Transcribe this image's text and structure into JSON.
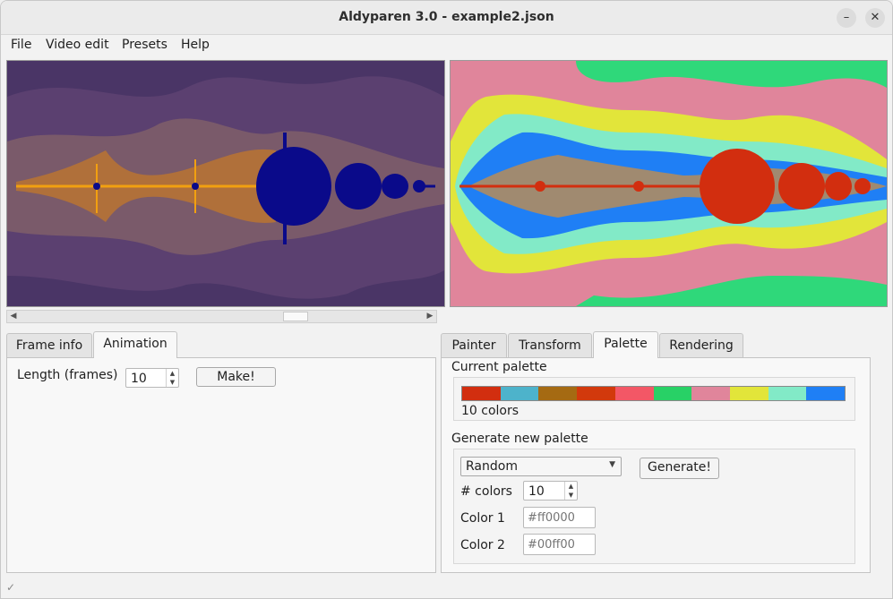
{
  "window": {
    "title": "Aldyparen 3.0 - example2.json",
    "minimize_icon": "minimize-icon",
    "close_icon": "close-icon",
    "minimize_glyph": "–",
    "close_glyph": "✕"
  },
  "menu": [
    "File",
    "Video edit",
    "Presets",
    "Help"
  ],
  "left_tabs": [
    "Frame info",
    "Animation"
  ],
  "left_active_tab": "Animation",
  "animation": {
    "length_label": "Length (frames)",
    "length_value": "10",
    "make_label": "Make!"
  },
  "right_tabs": [
    "Painter",
    "Transform",
    "Palette",
    "Rendering"
  ],
  "right_active_tab": "Palette",
  "palette": {
    "current_label": "Current palette",
    "colors": [
      "#d22e0f",
      "#4db3cb",
      "#a56a12",
      "#d2390c",
      "#f35766",
      "#28d166",
      "#e0859b",
      "#e2e53a",
      "#82eac7",
      "#1f7ff5"
    ],
    "count_text": "10 colors",
    "generate_label": "Generate new palette",
    "method": "Random",
    "generate_button": "Generate!",
    "num_colors_label": "# colors",
    "num_colors_value": "10",
    "color1_label": "Color 1",
    "color1_placeholder": "#ff0000",
    "color2_label": "Color 2",
    "color2_placeholder": "#00ff00"
  },
  "left_render_colors": {
    "background": "#4a3566",
    "band1": "#5b4070",
    "band2": "#7a5a6a",
    "glow": "#f2a010",
    "set": "#0a0a8a"
  },
  "right_render_colors": {
    "outer": "#2fd87a",
    "band1": "#e0859b",
    "band2": "#e2e53a",
    "band3": "#82eac7",
    "band4": "#1f7ff5",
    "set": "#d22e0f"
  },
  "status_icon": "checkmark-icon",
  "status_glyph": "✓"
}
